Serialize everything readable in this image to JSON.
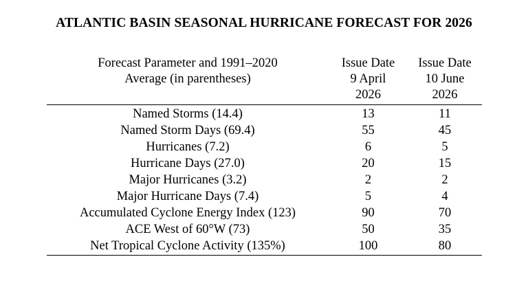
{
  "title": "ATLANTIC BASIN SEASONAL HURRICANE FORECAST FOR 2026",
  "header": {
    "param_line1": "Forecast Parameter and 1991–2020",
    "param_line2": "Average (in parentheses)",
    "col1": {
      "line1": "Issue Date",
      "line2": "9 April",
      "line3": "2026"
    },
    "col2": {
      "line1": "Issue Date",
      "line2": "10 June",
      "line3": "2026"
    }
  },
  "rows": [
    {
      "param": "Named Storms (14.4)",
      "april": "13",
      "june": "11"
    },
    {
      "param": "Named Storm Days (69.4)",
      "april": "55",
      "june": "45"
    },
    {
      "param": "Hurricanes (7.2)",
      "april": "6",
      "june": "5"
    },
    {
      "param": "Hurricane Days (27.0)",
      "april": "20",
      "june": "15"
    },
    {
      "param": "Major Hurricanes (3.2)",
      "april": "2",
      "june": "2"
    },
    {
      "param": "Major Hurricane Days (7.4)",
      "april": "5",
      "june": "4"
    },
    {
      "param": "Accumulated Cyclone Energy Index (123)",
      "april": "90",
      "june": "70"
    },
    {
      "param": "ACE West of 60°W (73)",
      "april": "50",
      "june": "35"
    },
    {
      "param": "Net Tropical Cyclone Activity (135%)",
      "april": "100",
      "june": "80"
    }
  ]
}
